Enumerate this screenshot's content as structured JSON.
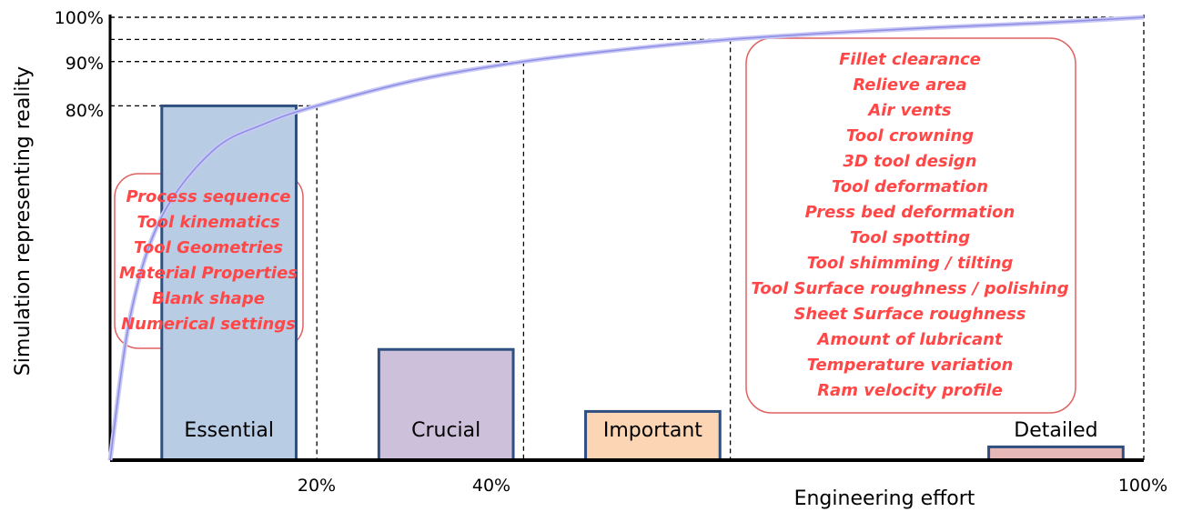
{
  "chart_data": {
    "type": "bar",
    "xlabel": "Engineering effort",
    "ylabel": "Simulation representing reality",
    "x_ticks": [
      "20%",
      "40%",
      "100%"
    ],
    "y_ticks": [
      "80%",
      "90%",
      "100%"
    ],
    "xlim": [
      0,
      100
    ],
    "ylim": [
      0,
      100
    ],
    "categories": [
      "Essential",
      "Crucial",
      "Important",
      "Detailed"
    ],
    "values": [
      80,
      25,
      11,
      3
    ],
    "bar_x_ranges": [
      [
        5,
        18
      ],
      [
        26,
        39
      ],
      [
        46,
        59
      ],
      [
        85,
        98
      ]
    ],
    "colors": [
      "#b8cce4",
      "#ccc0da",
      "#fcd5b4",
      "#e6b9b8"
    ],
    "curve": {
      "color": "#8f8fe6",
      "points": [
        [
          0,
          0
        ],
        [
          2,
          33
        ],
        [
          5,
          55
        ],
        [
          10,
          70
        ],
        [
          15,
          76
        ],
        [
          20,
          80
        ],
        [
          30,
          86
        ],
        [
          40,
          90
        ],
        [
          50,
          92.8
        ],
        [
          60,
          95
        ],
        [
          70,
          96.5
        ],
        [
          80,
          97.7
        ],
        [
          90,
          98.7
        ],
        [
          100,
          100
        ]
      ]
    },
    "reference_lines": [
      {
        "x": 20,
        "y": 80
      },
      {
        "x": 40,
        "y": 90
      },
      {
        "x": 60,
        "y": 95
      },
      {
        "x": 100,
        "y": 100
      }
    ],
    "annotations": [
      {
        "name": "essential-factors",
        "items": [
          "Process sequence",
          "Tool kinematics",
          "Tool Geometries",
          "Material Properties",
          "Blank shape",
          "Numerical settings"
        ]
      },
      {
        "name": "detailed-factors",
        "items": [
          "Fillet clearance",
          "Relieve area",
          "Air vents",
          "Tool crowning",
          "3D tool design",
          "Tool deformation",
          "Press bed deformation",
          "Tool spotting",
          "Tool shimming / tilting",
          "Tool Surface roughness / polishing",
          "Sheet Surface roughness",
          "Amount of lubricant",
          "Temperature variation",
          "Ram velocity profile"
        ]
      }
    ],
    "note_color": "#ff4747",
    "grid": false
  }
}
